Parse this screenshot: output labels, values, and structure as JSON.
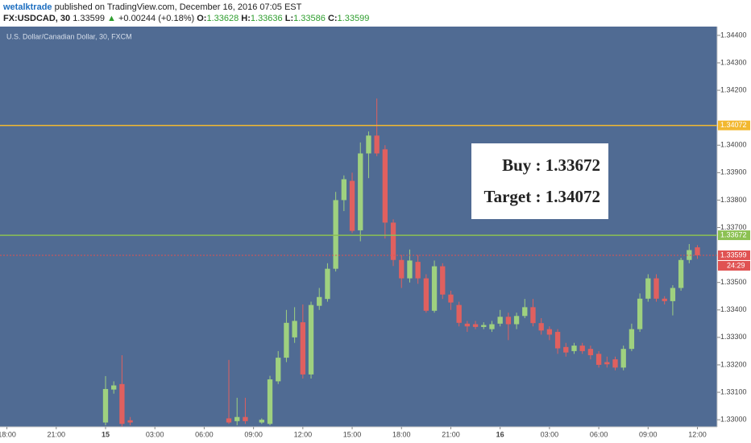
{
  "header": {
    "author": "wetalktrade",
    "published": "published on TradingView.com, December 16, 2016 07:05 EST",
    "symbol": "FX:USDCAD, 30",
    "price": "1.33599",
    "arrow": "▲",
    "change": "+0.00244 (+0.18%)",
    "ohlc": [
      {
        "label": "O:",
        "value": "1.33628"
      },
      {
        "label": "H:",
        "value": "1.33636"
      },
      {
        "label": "L:",
        "value": "1.33586"
      },
      {
        "label": "C:",
        "value": "1.33599"
      }
    ]
  },
  "chart_data": {
    "type": "candlestick",
    "title": "U.S. Dollar/Canadian Dollar, 30, FXCM",
    "up_color": "#9fd17f",
    "down_color": "#e0605f",
    "background": "#506b93",
    "grid": false,
    "xlim": [
      -0.84,
      86.4
    ],
    "ylim": [
      1.32974,
      1.34432
    ],
    "xticks": [
      {
        "value": 0,
        "label": "18:00"
      },
      {
        "value": 6,
        "label": "21:00"
      },
      {
        "value": 12,
        "label": "15"
      },
      {
        "value": 18,
        "label": "03:00"
      },
      {
        "value": 24,
        "label": "06:00"
      },
      {
        "value": 30,
        "label": "09:00"
      },
      {
        "value": 36,
        "label": "12:00"
      },
      {
        "value": 42,
        "label": "15:00"
      },
      {
        "value": 48,
        "label": "18:00"
      },
      {
        "value": 54,
        "label": "21:00"
      },
      {
        "value": 60,
        "label": "16"
      },
      {
        "value": 66,
        "label": "03:00"
      },
      {
        "value": 72,
        "label": "06:00"
      },
      {
        "value": 78,
        "label": "09:00"
      },
      {
        "value": 84,
        "label": "12:00"
      }
    ],
    "yticks": [
      {
        "value": 1.33,
        "label": "1.33000"
      },
      {
        "value": 1.331,
        "label": "1.33100"
      },
      {
        "value": 1.332,
        "label": "1.33200"
      },
      {
        "value": 1.333,
        "label": "1.33300"
      },
      {
        "value": 1.334,
        "label": "1.33400"
      },
      {
        "value": 1.335,
        "label": "1.33500"
      },
      {
        "value": 1.337,
        "label": "1.33700"
      },
      {
        "value": 1.338,
        "label": "1.33800"
      },
      {
        "value": 1.339,
        "label": "1.33900"
      },
      {
        "value": 1.34,
        "label": "1.34000"
      },
      {
        "value": 1.342,
        "label": "1.34200"
      },
      {
        "value": 1.343,
        "label": "1.34300"
      },
      {
        "value": 1.344,
        "label": "1.34400"
      }
    ],
    "x": [
      12,
      13,
      14,
      15,
      27,
      28,
      29,
      31,
      32,
      33,
      34,
      35,
      36,
      37,
      38,
      39,
      40,
      41,
      42,
      43,
      44,
      45,
      46,
      47,
      48,
      49,
      50,
      51,
      52,
      53,
      54,
      55,
      56,
      57,
      58,
      59,
      60,
      61,
      62,
      63,
      64,
      65,
      66,
      67,
      68,
      69,
      70,
      71,
      72,
      73,
      74,
      75,
      76,
      77,
      78,
      79,
      80,
      81,
      82,
      83,
      84
    ],
    "open": [
      1.3299,
      1.3311,
      1.3313,
      1.32998,
      1.33005,
      1.32995,
      1.3301,
      1.3299,
      1.32985,
      1.3314,
      1.33226,
      1.333,
      1.33355,
      1.33165,
      1.33415,
      1.3344,
      1.3355,
      1.338,
      1.3387,
      1.3369,
      1.3397,
      1.34035,
      1.33985,
      1.33718,
      1.33582,
      1.33515,
      1.33575,
      1.33515,
      1.33397,
      1.33559,
      1.33456,
      1.33418,
      1.3335,
      1.33348,
      1.33338,
      1.3333,
      1.3335,
      1.33375,
      1.33348,
      1.33378,
      1.3341,
      1.33352,
      1.3333,
      1.3332,
      1.33265,
      1.3325,
      1.3327,
      1.33258,
      1.3324,
      1.3321,
      1.3322,
      1.3319,
      1.33258,
      1.3333,
      1.33441,
      1.33515,
      1.33441,
      1.33432,
      1.3348,
      1.33582,
      1.33628
    ],
    "high": [
      1.33159,
      1.3314,
      1.33235,
      1.3301,
      1.33218,
      1.3308,
      1.3308,
      1.33005,
      1.3316,
      1.3325,
      1.334,
      1.3341,
      1.3342,
      1.3343,
      1.3348,
      1.3357,
      1.3383,
      1.3389,
      1.339,
      1.3401,
      1.3405,
      1.3417,
      1.34,
      1.3373,
      1.336,
      1.3362,
      1.336,
      1.3353,
      1.3358,
      1.3357,
      1.3347,
      1.3343,
      1.3336,
      1.3336,
      1.33355,
      1.3336,
      1.334,
      1.3339,
      1.3339,
      1.3344,
      1.3344,
      1.3337,
      1.3334,
      1.3333,
      1.3328,
      1.3328,
      1.3328,
      1.3327,
      1.3325,
      1.3323,
      1.3323,
      1.3327,
      1.3335,
      1.3346,
      1.3353,
      1.3353,
      1.3345,
      1.3349,
      1.3359,
      1.3364,
      1.33636
    ],
    "low": [
      1.3298,
      1.33095,
      1.32975,
      1.3298,
      1.32985,
      1.3298,
      1.32985,
      1.32985,
      1.3298,
      1.3313,
      1.3321,
      1.3328,
      1.3315,
      1.3315,
      1.334,
      1.3343,
      1.3354,
      1.3376,
      1.3368,
      1.3365,
      1.3388,
      1.3396,
      1.3366,
      1.3356,
      1.3348,
      1.335,
      1.33495,
      1.3339,
      1.3339,
      1.3344,
      1.334,
      1.3334,
      1.3332,
      1.3333,
      1.3333,
      1.3332,
      1.3334,
      1.3329,
      1.3333,
      1.3337,
      1.3334,
      1.3331,
      1.3329,
      1.3324,
      1.3323,
      1.3324,
      1.3324,
      1.3322,
      1.3319,
      1.3319,
      1.3318,
      1.3318,
      1.3325,
      1.3332,
      1.3343,
      1.3343,
      1.3342,
      1.3338,
      1.3347,
      1.3357,
      1.33586
    ],
    "close": [
      1.33112,
      1.33125,
      1.32985,
      1.3299,
      1.3299,
      1.3301,
      1.32995,
      1.33,
      1.33147,
      1.33226,
      1.33353,
      1.3336,
      1.33165,
      1.33418,
      1.33447,
      1.3355,
      1.338,
      1.33876,
      1.33688,
      1.3397,
      1.34035,
      1.3397,
      1.33718,
      1.33582,
      1.33515,
      1.3358,
      1.33515,
      1.33397,
      1.33559,
      1.33456,
      1.33427,
      1.33353,
      1.3334,
      1.33338,
      1.33345,
      1.33348,
      1.33375,
      1.33348,
      1.33378,
      1.3341,
      1.33352,
      1.33325,
      1.3331,
      1.3326,
      1.33245,
      1.3327,
      1.3325,
      1.33235,
      1.332,
      1.33202,
      1.3319,
      1.33258,
      1.3333,
      1.33441,
      1.33515,
      1.33441,
      1.33432,
      1.3348,
      1.33582,
      1.33618,
      1.33599
    ],
    "hlines": [
      {
        "value": 1.34072,
        "color": "#f2b830",
        "style": "solid"
      },
      {
        "value": 1.33672,
        "color": "#8cc152",
        "style": "solid"
      },
      {
        "value": 1.33599,
        "color": "#e05252",
        "style": "dotted",
        "countdown": "24:29"
      }
    ],
    "annotations": [
      "Buy : 1.33672",
      "Target : 1.34072"
    ]
  }
}
